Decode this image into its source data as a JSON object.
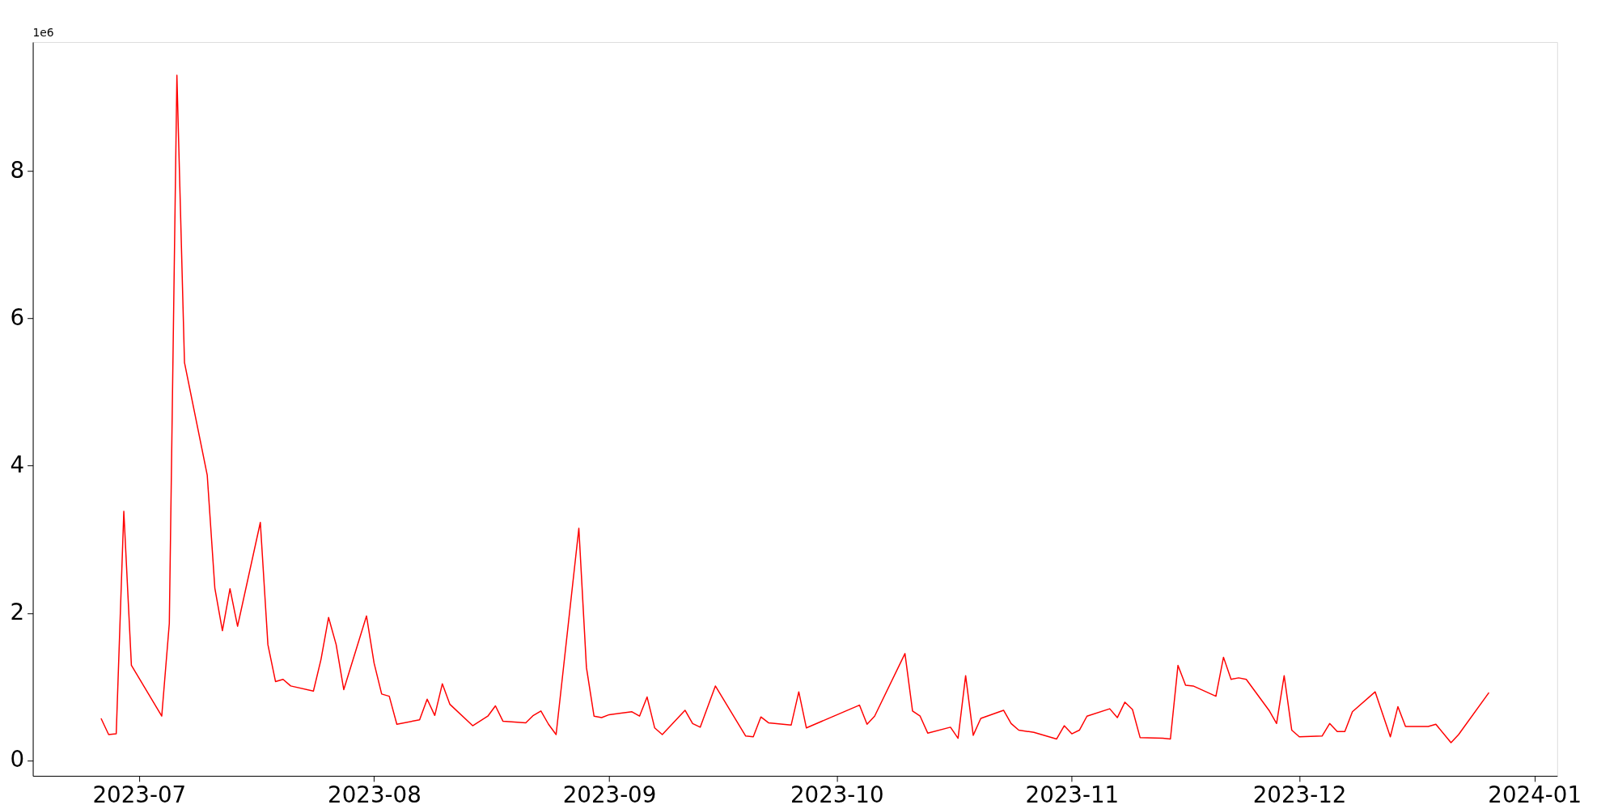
{
  "chart_data": {
    "type": "line",
    "x": [
      "2023-06-26",
      "2023-06-27",
      "2023-06-28",
      "2023-06-29",
      "2023-06-30",
      "2023-07-04",
      "2023-07-05",
      "2023-07-06",
      "2023-07-07",
      "2023-07-10",
      "2023-07-11",
      "2023-07-12",
      "2023-07-13",
      "2023-07-14",
      "2023-07-17",
      "2023-07-18",
      "2023-07-19",
      "2023-07-20",
      "2023-07-21",
      "2023-07-24",
      "2023-07-25",
      "2023-07-26",
      "2023-07-27",
      "2023-07-28",
      "2023-07-31",
      "2023-08-01",
      "2023-08-02",
      "2023-08-03",
      "2023-08-04",
      "2023-08-07",
      "2023-08-08",
      "2023-08-09",
      "2023-08-10",
      "2023-08-11",
      "2023-08-14",
      "2023-08-16",
      "2023-08-17",
      "2023-08-18",
      "2023-08-21",
      "2023-08-22",
      "2023-08-23",
      "2023-08-24",
      "2023-08-25",
      "2023-08-28",
      "2023-08-29",
      "2023-08-30",
      "2023-08-31",
      "2023-09-01",
      "2023-09-04",
      "2023-09-05",
      "2023-09-06",
      "2023-09-07",
      "2023-09-08",
      "2023-09-11",
      "2023-09-12",
      "2023-09-13",
      "2023-09-15",
      "2023-09-19",
      "2023-09-20",
      "2023-09-21",
      "2023-09-22",
      "2023-09-25",
      "2023-09-26",
      "2023-09-27",
      "2023-10-04",
      "2023-10-05",
      "2023-10-06",
      "2023-10-10",
      "2023-10-11",
      "2023-10-12",
      "2023-10-13",
      "2023-10-16",
      "2023-10-17",
      "2023-10-18",
      "2023-10-19",
      "2023-10-20",
      "2023-10-23",
      "2023-10-24",
      "2023-10-25",
      "2023-10-27",
      "2023-10-30",
      "2023-10-31",
      "2023-11-01",
      "2023-11-02",
      "2023-11-03",
      "2023-11-06",
      "2023-11-07",
      "2023-11-08",
      "2023-11-09",
      "2023-11-10",
      "2023-11-13",
      "2023-11-14",
      "2023-11-15",
      "2023-11-16",
      "2023-11-17",
      "2023-11-20",
      "2023-11-21",
      "2023-11-22",
      "2023-11-23",
      "2023-11-24",
      "2023-11-27",
      "2023-11-28",
      "2023-11-29",
      "2023-11-30",
      "2023-12-01",
      "2023-12-04",
      "2023-12-05",
      "2023-12-06",
      "2023-12-07",
      "2023-12-08",
      "2023-12-11",
      "2023-12-13",
      "2023-12-14",
      "2023-12-15",
      "2023-12-18",
      "2023-12-19",
      "2023-12-21",
      "2023-12-22",
      "2023-12-26"
    ],
    "series": [
      {
        "color": "#ff0000",
        "values": [
          0.57,
          0.35,
          0.36,
          3.38,
          1.29,
          0.6,
          1.86,
          9.3,
          5.4,
          3.87,
          2.34,
          1.76,
          2.33,
          1.82,
          3.23,
          1.57,
          1.07,
          1.1,
          1.01,
          0.94,
          1.37,
          1.94,
          1.57,
          0.96,
          1.96,
          1.32,
          0.9,
          0.87,
          0.49,
          0.55,
          0.83,
          0.61,
          1.04,
          0.76,
          0.47,
          0.6,
          0.74,
          0.53,
          0.51,
          0.61,
          0.67,
          0.49,
          0.35,
          3.15,
          1.26,
          0.6,
          0.58,
          0.62,
          0.66,
          0.6,
          0.86,
          0.44,
          0.35,
          0.68,
          0.5,
          0.45,
          1.01,
          0.33,
          0.32,
          0.59,
          0.51,
          0.48,
          0.93,
          0.44,
          0.75,
          0.49,
          0.6,
          1.45,
          0.67,
          0.6,
          0.37,
          0.45,
          0.3,
          1.15,
          0.34,
          0.57,
          0.68,
          0.5,
          0.41,
          0.38,
          0.29,
          0.47,
          0.36,
          0.41,
          0.6,
          0.7,
          0.58,
          0.79,
          0.69,
          0.31,
          0.3,
          0.29,
          1.29,
          1.02,
          1.01,
          0.87,
          1.4,
          1.1,
          1.12,
          1.1,
          0.68,
          0.5,
          1.15,
          0.41,
          0.32,
          0.33,
          0.5,
          0.39,
          0.39,
          0.66,
          0.93,
          0.32,
          0.73,
          0.46,
          0.46,
          0.49,
          0.24,
          0.35,
          0.92
        ]
      }
    ],
    "xlim": [
      "2023-06-17",
      "2024-01-04"
    ],
    "xticks": [
      {
        "value": "2023-07-01",
        "label": "2023-07"
      },
      {
        "value": "2023-08-01",
        "label": "2023-08"
      },
      {
        "value": "2023-09-01",
        "label": "2023-09"
      },
      {
        "value": "2023-10-01",
        "label": "2023-10"
      },
      {
        "value": "2023-11-01",
        "label": "2023-11"
      },
      {
        "value": "2023-12-01",
        "label": "2023-12"
      },
      {
        "value": "2024-01-01",
        "label": "2024-01"
      }
    ],
    "ylim": [
      -0.21,
      9.75
    ],
    "yticks": [
      0,
      2,
      4,
      6,
      8
    ],
    "annotations": [
      "1e6"
    ],
    "grid": false,
    "line_style": "solid",
    "marker": "none"
  }
}
